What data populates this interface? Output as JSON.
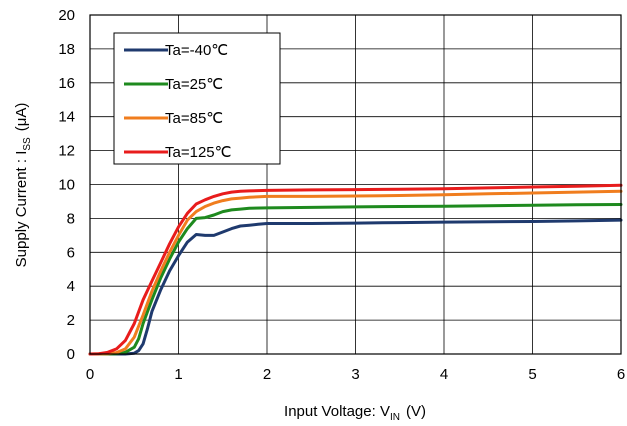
{
  "chart_data": {
    "type": "line",
    "xlabel": "Input Voltage: V",
    "xlabel_sub": "IN",
    "xlabel_unit": "(V)",
    "ylabel": "Supply Current : I",
    "ylabel_sub": "SS",
    "ylabel_unit": "(μA)",
    "xlim": [
      0,
      6
    ],
    "ylim": [
      0,
      20
    ],
    "x_ticks": [
      "0",
      "1",
      "2",
      "3",
      "4",
      "5",
      "6"
    ],
    "y_ticks": [
      "0",
      "2",
      "4",
      "6",
      "8",
      "10",
      "12",
      "14",
      "16",
      "18",
      "20"
    ],
    "grid": true,
    "legend_position": "top-left",
    "series": [
      {
        "name": "Ta=-40℃",
        "color": "#1f3a6e",
        "x": [
          0,
          0.2,
          0.4,
          0.5,
          0.55,
          0.6,
          0.65,
          0.7,
          0.8,
          0.9,
          1.0,
          1.1,
          1.2,
          1.3,
          1.4,
          1.5,
          1.6,
          1.7,
          1.8,
          1.9,
          2.0,
          2.5,
          3.0,
          3.5,
          4.0,
          5.0,
          5.5,
          6.0
        ],
        "values": [
          0,
          0,
          0,
          0.05,
          0.2,
          0.6,
          1.5,
          2.5,
          3.8,
          4.9,
          5.8,
          6.6,
          7.05,
          7.0,
          7.0,
          7.2,
          7.4,
          7.55,
          7.6,
          7.65,
          7.7,
          7.7,
          7.72,
          7.75,
          7.78,
          7.82,
          7.85,
          7.9
        ]
      },
      {
        "name": "Ta=25℃",
        "color": "#1e8a1e",
        "x": [
          0,
          0.2,
          0.3,
          0.4,
          0.5,
          0.55,
          0.6,
          0.7,
          0.8,
          0.9,
          1.0,
          1.1,
          1.2,
          1.3,
          1.4,
          1.5,
          1.6,
          1.7,
          1.8,
          2.0,
          2.5,
          3.0,
          3.5,
          4.0,
          4.5,
          5.0,
          5.5,
          6.0
        ],
        "values": [
          0,
          0,
          0.02,
          0.1,
          0.4,
          0.9,
          1.8,
          3.2,
          4.5,
          5.6,
          6.6,
          7.4,
          8.0,
          8.05,
          8.2,
          8.4,
          8.5,
          8.55,
          8.6,
          8.62,
          8.65,
          8.68,
          8.7,
          8.72,
          8.75,
          8.78,
          8.8,
          8.82
        ]
      },
      {
        "name": "Ta=85℃",
        "color": "#f07d1e",
        "x": [
          0,
          0.2,
          0.3,
          0.4,
          0.5,
          0.6,
          0.7,
          0.8,
          0.9,
          1.0,
          1.1,
          1.2,
          1.3,
          1.4,
          1.5,
          1.6,
          1.7,
          1.8,
          2.0,
          2.5,
          3.0,
          3.5,
          4.0,
          4.5,
          5.0,
          5.5,
          6.0
        ],
        "values": [
          0,
          0.02,
          0.08,
          0.3,
          1.0,
          2.3,
          3.7,
          4.9,
          6.0,
          7.0,
          7.9,
          8.4,
          8.7,
          8.9,
          9.05,
          9.15,
          9.2,
          9.25,
          9.3,
          9.3,
          9.32,
          9.35,
          9.4,
          9.45,
          9.5,
          9.55,
          9.6
        ]
      },
      {
        "name": "Ta=125℃",
        "color": "#e81c1c",
        "x": [
          0,
          0.1,
          0.2,
          0.3,
          0.4,
          0.5,
          0.6,
          0.7,
          0.8,
          0.9,
          1.0,
          1.1,
          1.2,
          1.3,
          1.4,
          1.5,
          1.6,
          1.7,
          1.8,
          2.0,
          2.5,
          3.0,
          3.5,
          4.0,
          4.5,
          5.0,
          5.5,
          6.0
        ],
        "values": [
          0,
          0.02,
          0.1,
          0.3,
          0.8,
          1.8,
          3.2,
          4.3,
          5.4,
          6.5,
          7.5,
          8.3,
          8.85,
          9.1,
          9.3,
          9.45,
          9.55,
          9.6,
          9.62,
          9.65,
          9.68,
          9.7,
          9.72,
          9.75,
          9.8,
          9.85,
          9.9,
          9.95
        ]
      }
    ]
  }
}
